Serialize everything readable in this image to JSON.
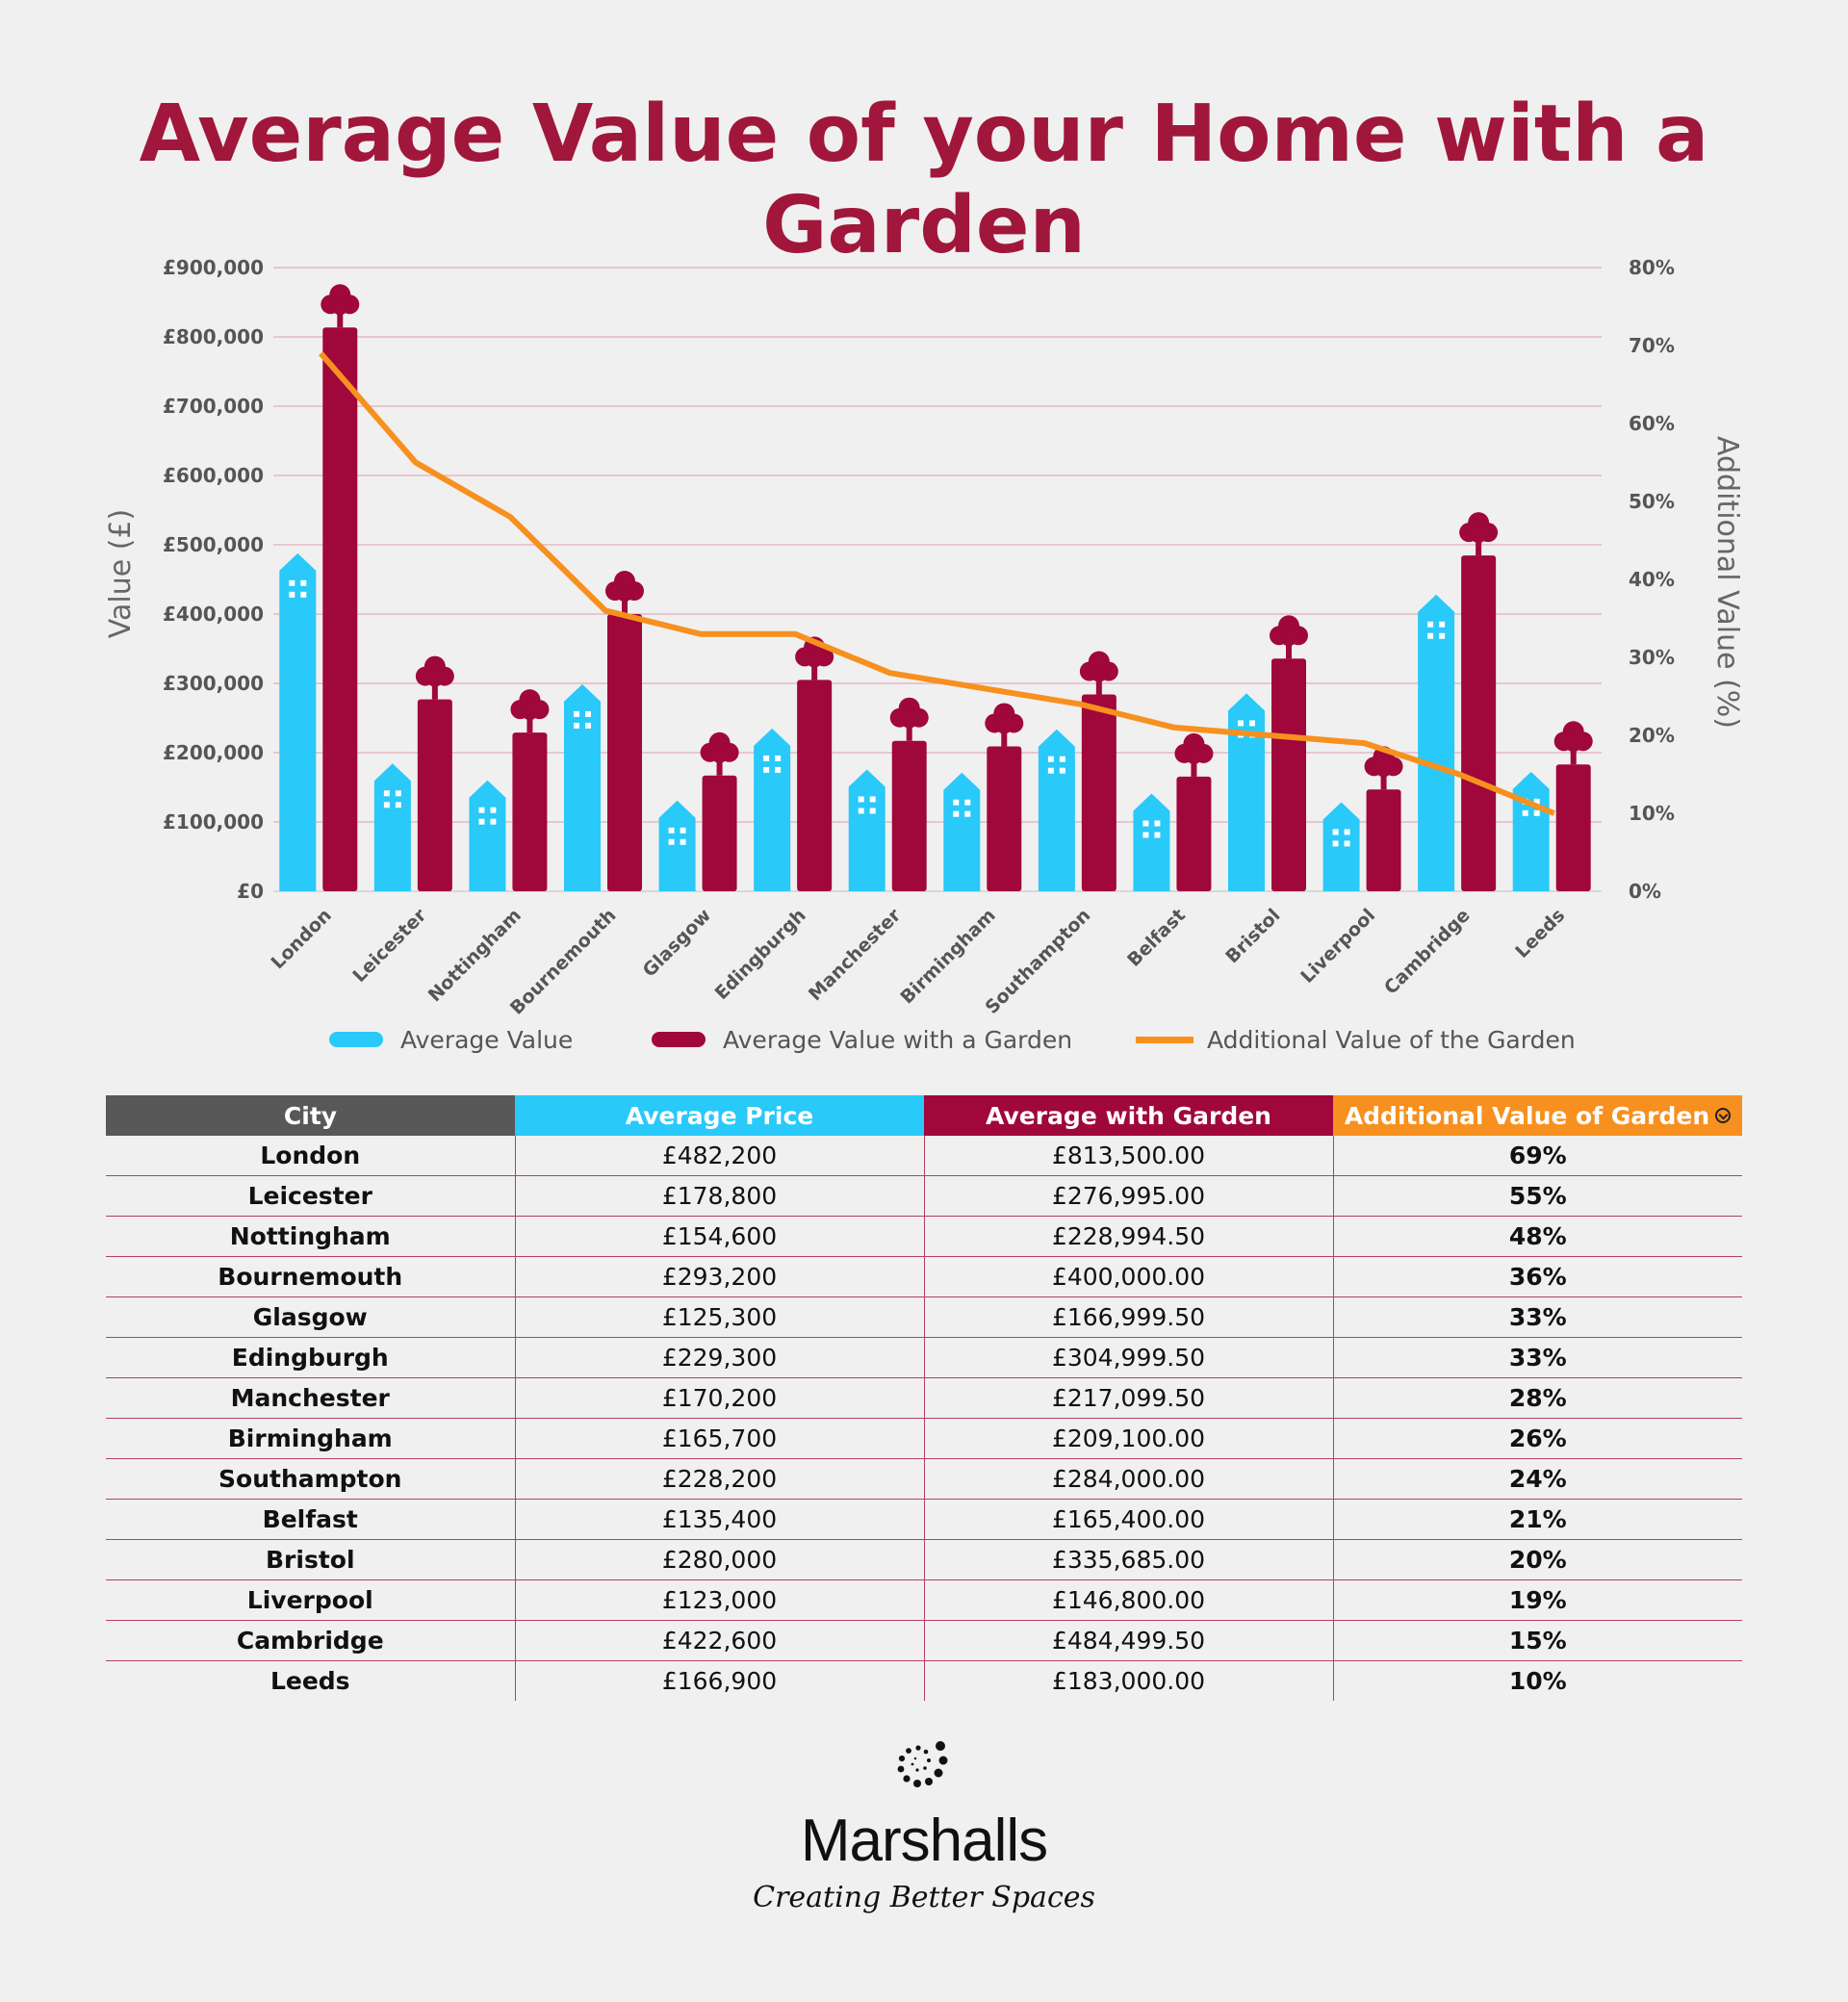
{
  "title": "Average Value of your Home with a Garden",
  "colors": {
    "avg": "#29c9f9",
    "garden": "#a0073b",
    "line": "#f7901e",
    "title": "#a0173b",
    "grid": "#e5b8c3"
  },
  "chart_data": {
    "type": "bar",
    "categories": [
      "London",
      "Leicester",
      "Nottingham",
      "Bournemouth",
      "Glasgow",
      "Edingburgh",
      "Manchester",
      "Birmingham",
      "Southampton",
      "Belfast",
      "Bristol",
      "Liverpool",
      "Cambridge",
      "Leeds"
    ],
    "series": [
      {
        "name": "Average Value",
        "type": "bar",
        "axis": "left",
        "icon": "building-icon",
        "values": [
          482200,
          178800,
          154600,
          293200,
          125300,
          229300,
          170200,
          165700,
          228200,
          135400,
          280000,
          123000,
          422600,
          166900
        ]
      },
      {
        "name": "Average Value with a Garden",
        "type": "bar",
        "axis": "left",
        "icon": "tree-icon",
        "values": [
          813500,
          276995,
          228994.5,
          400000,
          166999.5,
          304999.5,
          217099.5,
          209100,
          284000,
          165400,
          335685,
          146800,
          484499.5,
          183000
        ]
      },
      {
        "name": "Additional Value of the Garden",
        "type": "line",
        "axis": "right",
        "values": [
          69,
          55,
          48,
          36,
          33,
          33,
          28,
          26,
          24,
          21,
          20,
          19,
          15,
          10
        ]
      }
    ],
    "ylabel": "Value (£)",
    "y2label": "Additional Value (%)",
    "ylim": [
      0,
      900000
    ],
    "y2lim": [
      0,
      80
    ],
    "yticks": [
      "£0",
      "£100,000",
      "£200,000",
      "£300,000",
      "£400,000",
      "£500,000",
      "£600,000",
      "£700,000",
      "£800,000",
      "£900,000"
    ],
    "y2ticks": [
      "0%",
      "10%",
      "20%",
      "30%",
      "40%",
      "50%",
      "60%",
      "70%",
      "80%"
    ],
    "grid": true,
    "legend_position": "bottom"
  },
  "table": {
    "headers": [
      "City",
      "Average Price",
      "Average with Garden",
      "Additional Value of Garden"
    ],
    "rows": [
      [
        "London",
        "£482,200",
        "£813,500.00",
        "69%"
      ],
      [
        "Leicester",
        "£178,800",
        "£276,995.00",
        "55%"
      ],
      [
        "Nottingham",
        "£154,600",
        "£228,994.50",
        "48%"
      ],
      [
        "Bournemouth",
        "£293,200",
        "£400,000.00",
        "36%"
      ],
      [
        "Glasgow",
        "£125,300",
        "£166,999.50",
        "33%"
      ],
      [
        "Edingburgh",
        "£229,300",
        "£304,999.50",
        "33%"
      ],
      [
        "Manchester",
        "£170,200",
        "£217,099.50",
        "28%"
      ],
      [
        "Birmingham",
        "£165,700",
        "£209,100.00",
        "26%"
      ],
      [
        "Southampton",
        "£228,200",
        "£284,000.00",
        "24%"
      ],
      [
        "Belfast",
        "£135,400",
        "£165,400.00",
        "21%"
      ],
      [
        "Bristol",
        "£280,000",
        "£335,685.00",
        "20%"
      ],
      [
        "Liverpool",
        "£123,000",
        "£146,800.00",
        "19%"
      ],
      [
        "Cambridge",
        "£422,600",
        "£484,499.50",
        "15%"
      ],
      [
        "Leeds",
        "£166,900",
        "£183,000.00",
        "10%"
      ]
    ]
  },
  "logo": {
    "brand": "Marshalls",
    "tagline": "Creating Better Spaces",
    "icon": "dot-spiral-logo-icon"
  }
}
